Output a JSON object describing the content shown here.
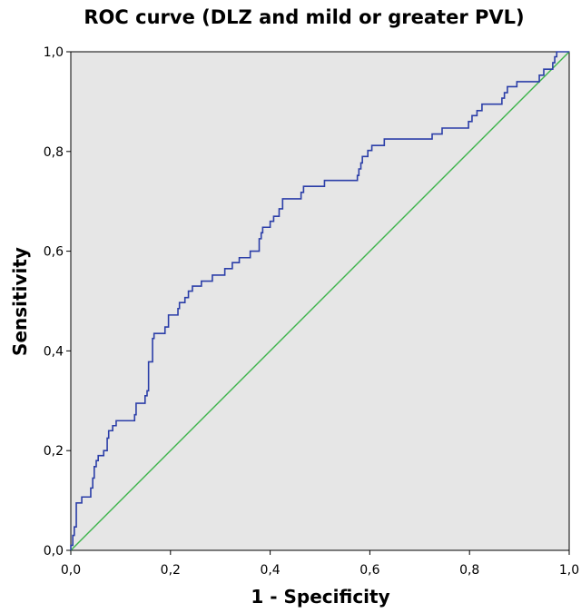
{
  "chart_data": {
    "type": "line",
    "title": "ROC curve (DLZ and mild or greater PVL)",
    "xlabel": "1 - Specificity",
    "ylabel": "Sensitivity",
    "xlim": [
      0,
      1
    ],
    "ylim": [
      0,
      1
    ],
    "x_ticks": [
      "0,0",
      "0,2",
      "0,4",
      "0,6",
      "0,8",
      "1,0"
    ],
    "y_ticks": [
      "0,0",
      "0,2",
      "0,4",
      "0,6",
      "0,8",
      "1,0"
    ],
    "grid": false,
    "legend": "none",
    "colors": {
      "plot_background": "#e6e6e6",
      "roc_curve": "#2b3ea8",
      "reference_line": "#3cb44b"
    },
    "series": [
      {
        "values": [
          [
            0.0,
            0.0
          ],
          [
            0.0,
            0.01
          ],
          [
            0.004,
            0.01
          ],
          [
            0.004,
            0.03
          ],
          [
            0.007,
            0.03
          ],
          [
            0.007,
            0.047
          ],
          [
            0.011,
            0.047
          ],
          [
            0.011,
            0.095
          ],
          [
            0.022,
            0.095
          ],
          [
            0.022,
            0.107
          ],
          [
            0.04,
            0.107
          ],
          [
            0.04,
            0.125
          ],
          [
            0.044,
            0.125
          ],
          [
            0.044,
            0.145
          ],
          [
            0.047,
            0.145
          ],
          [
            0.047,
            0.168
          ],
          [
            0.051,
            0.168
          ],
          [
            0.051,
            0.18
          ],
          [
            0.055,
            0.18
          ],
          [
            0.055,
            0.19
          ],
          [
            0.066,
            0.19
          ],
          [
            0.066,
            0.2
          ],
          [
            0.073,
            0.2
          ],
          [
            0.073,
            0.225
          ],
          [
            0.076,
            0.225
          ],
          [
            0.076,
            0.24
          ],
          [
            0.084,
            0.24
          ],
          [
            0.084,
            0.25
          ],
          [
            0.091,
            0.25
          ],
          [
            0.091,
            0.26
          ],
          [
            0.128,
            0.26
          ],
          [
            0.128,
            0.272
          ],
          [
            0.131,
            0.272
          ],
          [
            0.131,
            0.295
          ],
          [
            0.149,
            0.295
          ],
          [
            0.149,
            0.31
          ],
          [
            0.153,
            0.31
          ],
          [
            0.153,
            0.32
          ],
          [
            0.156,
            0.32
          ],
          [
            0.156,
            0.378
          ],
          [
            0.164,
            0.378
          ],
          [
            0.164,
            0.425
          ],
          [
            0.167,
            0.425
          ],
          [
            0.167,
            0.435
          ],
          [
            0.189,
            0.435
          ],
          [
            0.189,
            0.448
          ],
          [
            0.196,
            0.448
          ],
          [
            0.196,
            0.472
          ],
          [
            0.215,
            0.472
          ],
          [
            0.215,
            0.485
          ],
          [
            0.218,
            0.485
          ],
          [
            0.218,
            0.497
          ],
          [
            0.229,
            0.497
          ],
          [
            0.229,
            0.507
          ],
          [
            0.236,
            0.507
          ],
          [
            0.236,
            0.52
          ],
          [
            0.244,
            0.52
          ],
          [
            0.244,
            0.53
          ],
          [
            0.262,
            0.53
          ],
          [
            0.262,
            0.54
          ],
          [
            0.284,
            0.54
          ],
          [
            0.284,
            0.552
          ],
          [
            0.309,
            0.552
          ],
          [
            0.309,
            0.565
          ],
          [
            0.324,
            0.565
          ],
          [
            0.324,
            0.577
          ],
          [
            0.338,
            0.577
          ],
          [
            0.338,
            0.587
          ],
          [
            0.36,
            0.587
          ],
          [
            0.36,
            0.6
          ],
          [
            0.378,
            0.6
          ],
          [
            0.378,
            0.625
          ],
          [
            0.382,
            0.625
          ],
          [
            0.382,
            0.637
          ],
          [
            0.385,
            0.637
          ],
          [
            0.385,
            0.648
          ],
          [
            0.4,
            0.648
          ],
          [
            0.4,
            0.66
          ],
          [
            0.407,
            0.66
          ],
          [
            0.407,
            0.67
          ],
          [
            0.418,
            0.67
          ],
          [
            0.418,
            0.685
          ],
          [
            0.425,
            0.685
          ],
          [
            0.425,
            0.705
          ],
          [
            0.462,
            0.705
          ],
          [
            0.462,
            0.718
          ],
          [
            0.467,
            0.718
          ],
          [
            0.467,
            0.73
          ],
          [
            0.509,
            0.73
          ],
          [
            0.509,
            0.742
          ],
          [
            0.575,
            0.742
          ],
          [
            0.575,
            0.752
          ],
          [
            0.578,
            0.752
          ],
          [
            0.578,
            0.765
          ],
          [
            0.582,
            0.765
          ],
          [
            0.582,
            0.777
          ],
          [
            0.585,
            0.777
          ],
          [
            0.585,
            0.79
          ],
          [
            0.596,
            0.79
          ],
          [
            0.596,
            0.802
          ],
          [
            0.604,
            0.802
          ],
          [
            0.604,
            0.812
          ],
          [
            0.629,
            0.812
          ],
          [
            0.629,
            0.825
          ],
          [
            0.725,
            0.825
          ],
          [
            0.725,
            0.835
          ],
          [
            0.745,
            0.835
          ],
          [
            0.745,
            0.847
          ],
          [
            0.798,
            0.847
          ],
          [
            0.798,
            0.86
          ],
          [
            0.805,
            0.86
          ],
          [
            0.805,
            0.872
          ],
          [
            0.815,
            0.872
          ],
          [
            0.815,
            0.882
          ],
          [
            0.825,
            0.882
          ],
          [
            0.825,
            0.895
          ],
          [
            0.865,
            0.895
          ],
          [
            0.865,
            0.907
          ],
          [
            0.87,
            0.907
          ],
          [
            0.87,
            0.918
          ],
          [
            0.876,
            0.918
          ],
          [
            0.876,
            0.93
          ],
          [
            0.895,
            0.93
          ],
          [
            0.895,
            0.94
          ],
          [
            0.94,
            0.94
          ],
          [
            0.94,
            0.953
          ],
          [
            0.949,
            0.953
          ],
          [
            0.949,
            0.965
          ],
          [
            0.967,
            0.965
          ],
          [
            0.967,
            0.978
          ],
          [
            0.971,
            0.978
          ],
          [
            0.971,
            0.99
          ],
          [
            0.975,
            0.99
          ],
          [
            0.975,
            1.0
          ],
          [
            1.0,
            1.0
          ]
        ]
      },
      {
        "values": [
          [
            0,
            0
          ],
          [
            1,
            1
          ]
        ]
      }
    ]
  }
}
